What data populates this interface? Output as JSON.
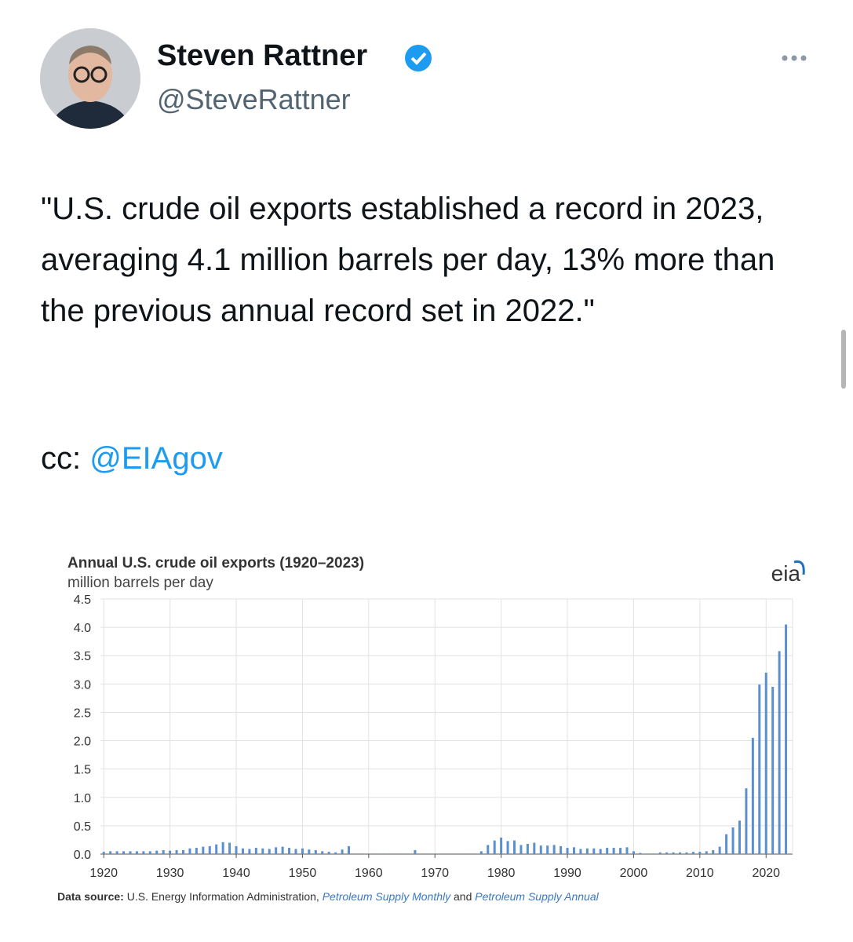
{
  "tweet": {
    "name": "Steven Rattner",
    "handle": "@SteveRattner",
    "text": "\"U.S. crude oil exports established a record in 2023, averaging 4.1 million barrels per day, 13% more than the previous annual record set in 2022.\"",
    "cc_label": "cc:",
    "cc_mention": "@EIAgov"
  },
  "chart_data": {
    "type": "bar",
    "title": "Annual U.S. crude oil exports (1920–2023)",
    "subtitle": "million barrels per day",
    "logo": "eia",
    "color": "#5b8fd0",
    "grid": true,
    "source_label": "Data source:",
    "source_text": "U.S. Energy Information Administration,",
    "source_link1": "Petroleum Supply Monthly",
    "source_and": "and",
    "source_link2": "Petroleum Supply Annual",
    "x": [
      1920,
      1921,
      1922,
      1923,
      1924,
      1925,
      1926,
      1927,
      1928,
      1929,
      1930,
      1931,
      1932,
      1933,
      1934,
      1935,
      1936,
      1937,
      1938,
      1939,
      1940,
      1941,
      1942,
      1943,
      1944,
      1945,
      1946,
      1947,
      1948,
      1949,
      1950,
      1951,
      1952,
      1953,
      1954,
      1955,
      1956,
      1957,
      1958,
      1959,
      1960,
      1961,
      1962,
      1963,
      1964,
      1965,
      1966,
      1967,
      1968,
      1969,
      1970,
      1971,
      1972,
      1973,
      1974,
      1975,
      1976,
      1977,
      1978,
      1979,
      1980,
      1981,
      1982,
      1983,
      1984,
      1985,
      1986,
      1987,
      1988,
      1989,
      1990,
      1991,
      1992,
      1993,
      1994,
      1995,
      1996,
      1997,
      1998,
      1999,
      2000,
      2001,
      2002,
      2003,
      2004,
      2005,
      2006,
      2007,
      2008,
      2009,
      2010,
      2011,
      2012,
      2013,
      2014,
      2015,
      2016,
      2017,
      2018,
      2019,
      2020,
      2021,
      2022,
      2023
    ],
    "values": [
      0.04,
      0.05,
      0.05,
      0.05,
      0.05,
      0.05,
      0.05,
      0.05,
      0.06,
      0.07,
      0.06,
      0.07,
      0.07,
      0.1,
      0.11,
      0.13,
      0.14,
      0.17,
      0.21,
      0.2,
      0.14,
      0.1,
      0.09,
      0.11,
      0.1,
      0.09,
      0.12,
      0.13,
      0.11,
      0.09,
      0.1,
      0.08,
      0.07,
      0.05,
      0.04,
      0.03,
      0.08,
      0.14,
      0.01,
      0.01,
      0.01,
      0.01,
      0.01,
      0,
      0,
      0,
      0,
      0.07,
      0,
      0,
      0.01,
      0,
      0,
      0,
      0,
      0.01,
      0.01,
      0.05,
      0.16,
      0.24,
      0.29,
      0.23,
      0.24,
      0.16,
      0.18,
      0.2,
      0.15,
      0.15,
      0.16,
      0.14,
      0.11,
      0.12,
      0.09,
      0.1,
      0.1,
      0.09,
      0.11,
      0.11,
      0.11,
      0.12,
      0.05,
      0.02,
      0.01,
      0.01,
      0.03,
      0.03,
      0.03,
      0.03,
      0.03,
      0.04,
      0.04,
      0.05,
      0.07,
      0.13,
      0.35,
      0.47,
      0.59,
      1.16,
      2.05,
      2.99,
      3.2,
      2.95,
      3.58,
      4.05
    ],
    "xlim": [
      1919.5,
      2024
    ],
    "xticks": [
      1920,
      1930,
      1940,
      1950,
      1960,
      1970,
      1980,
      1990,
      2000,
      2010,
      2020
    ],
    "ylim": [
      0,
      4.5
    ],
    "yticks": [
      {
        "value": 0,
        "label": "0.0"
      },
      0.5,
      {
        "value": 1,
        "label": "1.0"
      },
      1.5,
      {
        "value": 2,
        "label": "2.0"
      },
      2.5,
      {
        "value": 3,
        "label": "3.0"
      },
      3.5,
      {
        "value": 4,
        "label": "4.0"
      },
      4.5
    ]
  }
}
